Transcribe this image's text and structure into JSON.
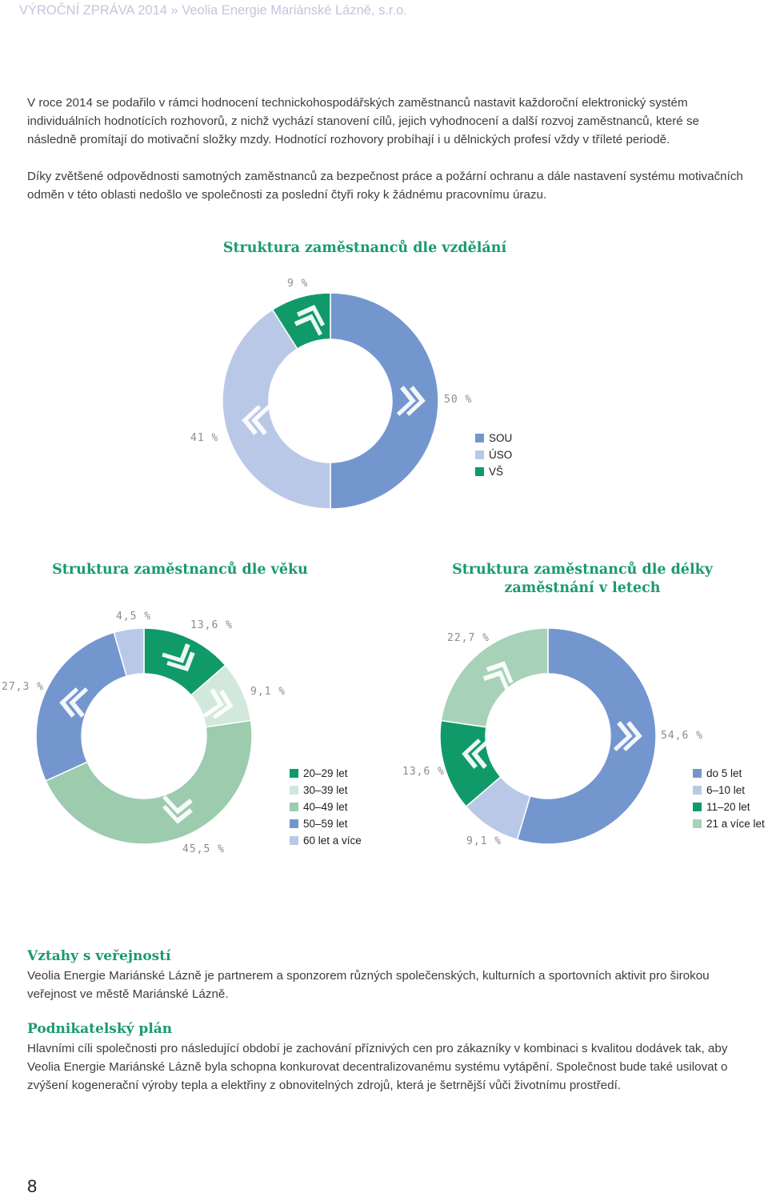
{
  "header": {
    "text": "VÝROČNÍ ZPRÁVA 2014 » Veolia Energie Mariánské Lázně, s.r.o."
  },
  "paragraphs": {
    "p1": "V roce 2014 se podařilo v rámci hodnocení technickohospodářských zaměstnanců nastavit každoroční elektronický systém individuálních hodnotících rozhovorů, z nichž vychází stanovení cílů, jejich vyhodnocení a další rozvoj zaměstnanců, které se následně promítají do motivační složky mzdy. Hodnotící rozhovory probíhají i u dělnických profesí vždy v tříleté periodě.",
    "p2": "Díky zvětšené odpovědnosti samotných zaměstnanců za  bezpečnost práce a požární ochranu a dále nastavení systému motivačních odměn v této oblasti nedošlo ve společnosti za poslední čtyři roky k žádnému pracovnímu úrazu."
  },
  "chart_data": [
    {
      "type": "pie",
      "title": "Struktura zaměstnanců dle vzdělání",
      "categories": [
        "SOU",
        "ÚSO",
        "VŠ"
      ],
      "values": [
        50,
        41,
        9
      ],
      "labels": [
        "50 %",
        "41 %",
        "9 %"
      ],
      "colors": [
        "#7496cf",
        "#bac8e8",
        "#119a69"
      ],
      "legend": "right"
    },
    {
      "type": "pie",
      "title": "Struktura zaměstnanců dle věku",
      "categories": [
        "20–29 let",
        "30–39 let",
        "40–49 let",
        "50–59 let",
        "60 let a více"
      ],
      "values": [
        13.6,
        9.1,
        45.5,
        27.3,
        4.5
      ],
      "labels": [
        "13,6 %",
        "9,1 %",
        "45,5 %",
        "27,3 %",
        "4,5 %"
      ],
      "colors": [
        "#119a69",
        "#d2e8dc",
        "#9ccbae",
        "#7496cf",
        "#bac8e8"
      ],
      "legend": "right"
    },
    {
      "type": "pie",
      "title": "Struktura zaměstnanců dle délky zaměstnání v letech",
      "categories": [
        "do 5 let",
        "6–10 let",
        "11–20 let",
        "21 a více let"
      ],
      "values": [
        54.6,
        9.1,
        13.6,
        22.7
      ],
      "labels": [
        "54,6 %",
        "9,1 %",
        "13,6 %",
        "22,7 %"
      ],
      "colors": [
        "#7496cf",
        "#bac8e8",
        "#119a69",
        "#a8d2b7"
      ],
      "legend": "right"
    }
  ],
  "sections": {
    "public": {
      "heading": "Vztahy s veřejností",
      "text": "Veolia Energie Mariánské Lázně je partnerem a sponzorem různých společenských, kulturních a sportovních aktivit pro širokou veřejnost ve městě Mariánské Lázně."
    },
    "plan": {
      "heading": "Podnikatelský plán",
      "text": "Hlavními cíli společnosti pro následující období je zachování příznivých cen pro zákazníky v kombinaci s kvalitou dodávek tak, aby Veolia Energie Mariánské Lázně byla schopna konkurovat decentralizovanému systému vytápění. Společnost bude také usilovat o zvýšení kogenerační výroby tepla a elektřiny z obnovitelných zdrojů, která je šetrnější vůči životnímu prostředí."
    }
  },
  "page_number": "8"
}
